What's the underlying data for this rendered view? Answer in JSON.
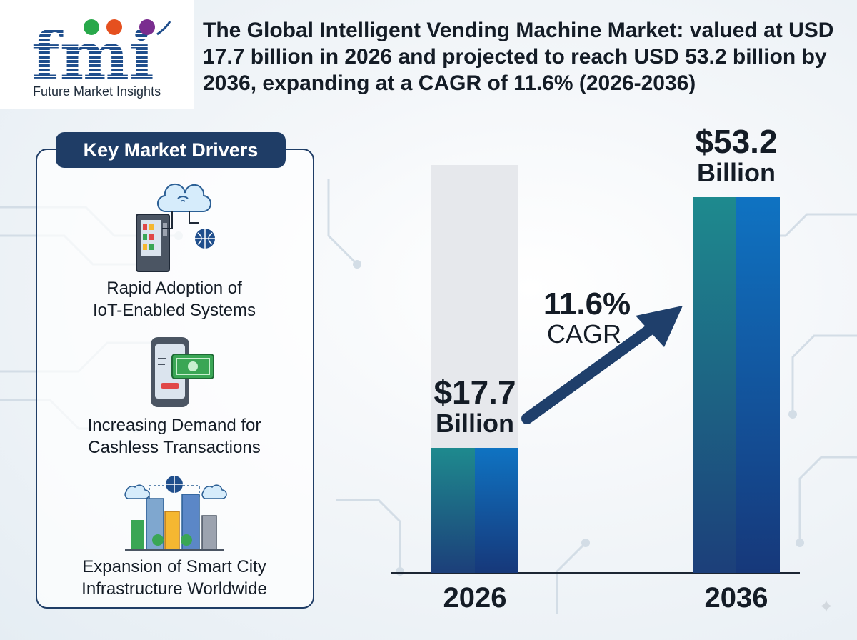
{
  "brand": {
    "logo_text": "fmi",
    "name": "Future Market Insights"
  },
  "title": "The Global Intelligent Vending Machine Market: valued at USD 17.7 billion in 2026 and projected to reach USD 53.2 billion by 2036, expanding at a CAGR of 11.6% (2026-2036)",
  "drivers": {
    "heading": "Key Market Drivers",
    "items": [
      {
        "line1": "Rapid Adoption of",
        "line2": "IoT-Enabled Systems",
        "icon": "iot-vending-icon"
      },
      {
        "line1": "Increasing Demand for",
        "line2": "Cashless Transactions",
        "icon": "mobile-payment-icon"
      },
      {
        "line1": "Expansion of Smart City",
        "line2": "Infrastructure Worldwide",
        "icon": "smart-city-icon"
      }
    ]
  },
  "chart_data": {
    "type": "bar",
    "categories": [
      "2026",
      "2036"
    ],
    "values": [
      17.7,
      53.2
    ],
    "value_labels": [
      {
        "amount": "$17.7",
        "unit": "Billion"
      },
      {
        "amount": "$53.2",
        "unit": "Billion"
      }
    ],
    "cagr": {
      "value": "11.6%",
      "label": "CAGR"
    },
    "ylim": [
      0,
      60
    ],
    "colors": {
      "bar_left": "#1e8a8e",
      "bar_right": "#0f73c2",
      "bar_bottom": "#1c3f7a",
      "ghost": "#e6e8ec",
      "arrow": "#1f3f6b"
    }
  }
}
